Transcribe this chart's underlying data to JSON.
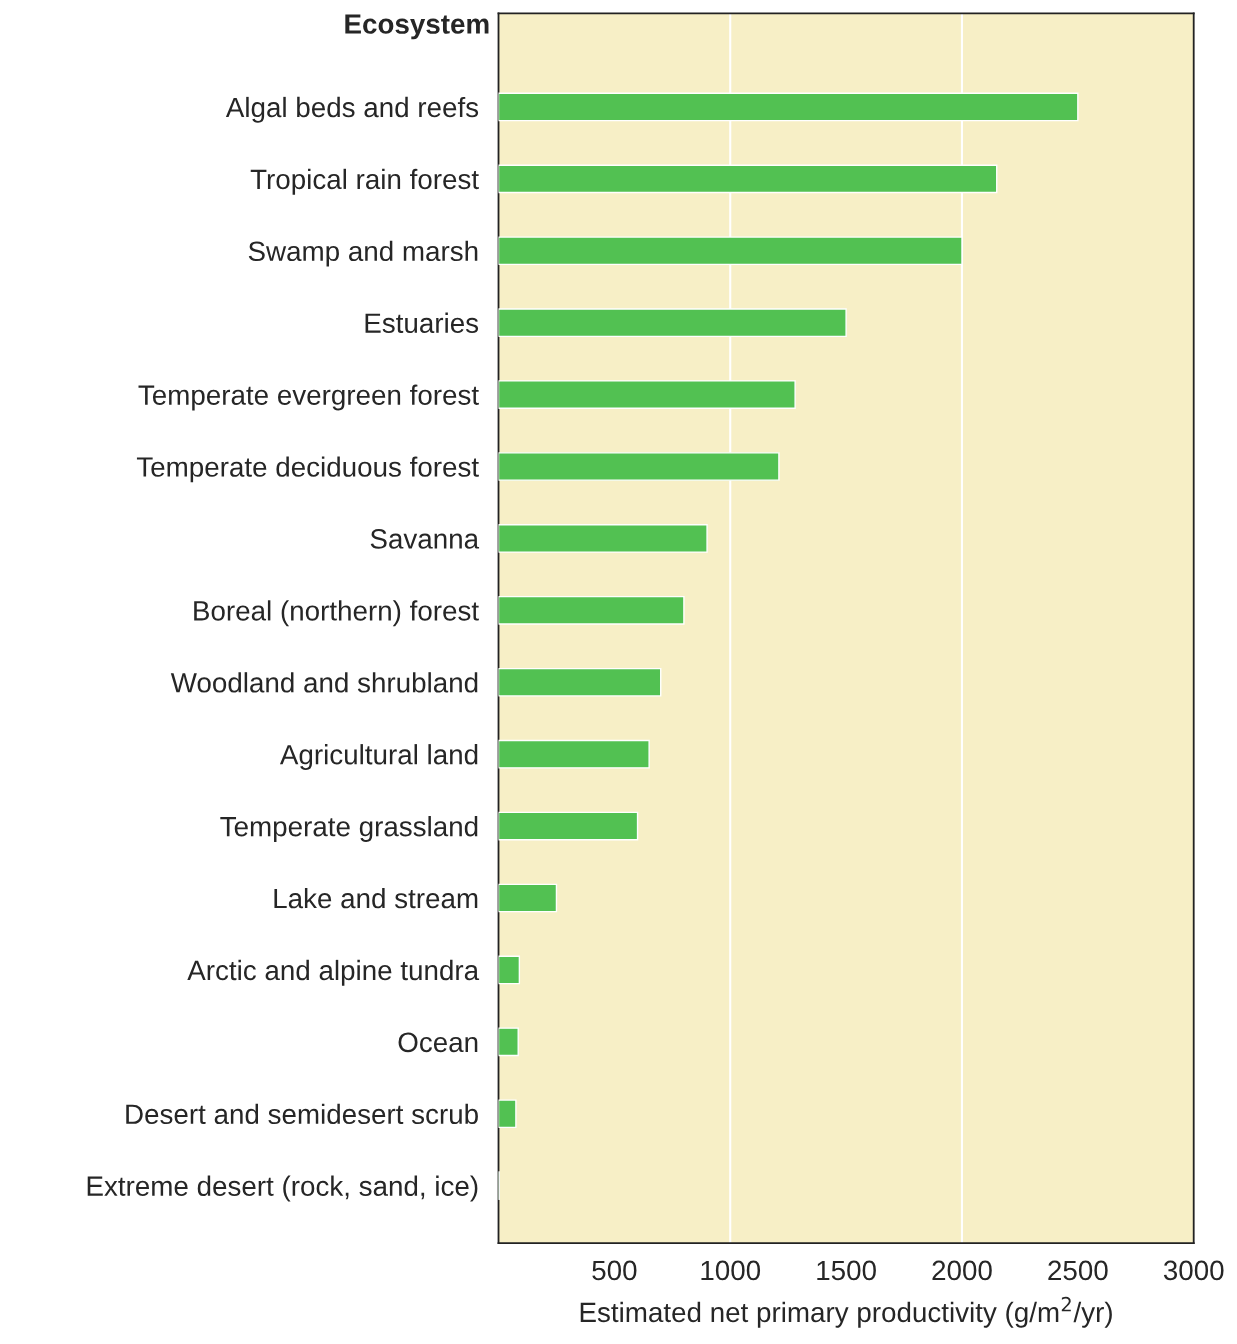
{
  "chart_data": {
    "type": "bar",
    "orientation": "horizontal",
    "ylabel": "Ecosystem",
    "xlabel": "Estimated net primary productivity (g/m$^{2}$/yr)",
    "categories": [
      "Algal beds and reefs",
      "Tropical rain forest",
      "Swamp and marsh",
      "Estuaries",
      "Temperate evergreen forest",
      "Temperate deciduous forest",
      "Savanna",
      "Boreal (northern) forest",
      "Woodland and shrubland",
      "Agricultural land",
      "Temperate grassland",
      "Lake and stream",
      "Arctic and alpine tundra",
      "Ocean",
      "Desert and semidesert scrub",
      "Extreme desert (rock, sand, ice)"
    ],
    "values": [
      2500,
      2150,
      2000,
      1500,
      1280,
      1210,
      900,
      800,
      700,
      650,
      600,
      250,
      90,
      85,
      75,
      3
    ],
    "color": "#52c152",
    "xlim": [
      0,
      3000
    ],
    "xticks": [
      500,
      1000,
      1500,
      2000,
      2500,
      3000
    ],
    "ref_lines": [
      {
        "axis": "x",
        "value": 1000,
        "color": "#ffffff"
      },
      {
        "axis": "x",
        "value": 2000,
        "color": "#ffffff"
      }
    ],
    "grid": false,
    "legend": false
  }
}
